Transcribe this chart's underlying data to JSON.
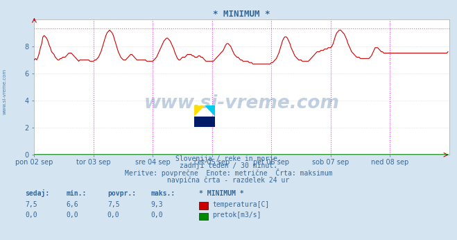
{
  "title": "* MINIMUM *",
  "bg_color": "#d4e4f0",
  "plot_bg_color": "#ffffff",
  "grid_color": "#c8c8c8",
  "line_color_temp": "#cc0000",
  "line_color_flow": "#008800",
  "dashed_line_color": "#ff6666",
  "vline_color": "#ff44ff",
  "arrow_color": "#cc0000",
  "ylim": [
    0,
    10
  ],
  "yticks": [
    0,
    2,
    4,
    6,
    8
  ],
  "xlim": [
    0,
    336
  ],
  "xlabel_ticks": [
    0,
    48,
    96,
    144,
    192,
    240,
    288
  ],
  "xlabel_labels": [
    "pon 02 sep",
    "tor 03 sep",
    "sre 04 sep",
    "čet 05 sep",
    "pet 06 sep",
    "sob 07 sep",
    "ned 08 sep"
  ],
  "vlines": [
    48,
    96,
    144,
    192,
    240,
    288
  ],
  "max_line_y": 9.3,
  "watermark": "www.si-vreme.com",
  "subtitle1": "Slovenija / reke in morje.",
  "subtitle2": "zadnji teden / 30 minut.",
  "subtitle3": "Meritve: povprečne  Enote: metrične  Črta: maksimum",
  "subtitle4": "navpična črta - razdelek 24 ur",
  "text_color": "#336699",
  "table_header": [
    "sedaj:",
    "min.:",
    "povpr.:",
    "maks.:",
    "* MINIMUM *"
  ],
  "table_row1": [
    "7,5",
    "6,6",
    "7,5",
    "9,3",
    "temperatura[C]"
  ],
  "table_row2": [
    "0,0",
    "0,0",
    "0,0",
    "0,0",
    "pretok[m3/s]"
  ],
  "temp_data": [
    7.0,
    7.1,
    7.0,
    7.2,
    7.5,
    7.9,
    8.2,
    8.7,
    8.8,
    8.7,
    8.6,
    8.4,
    8.1,
    7.9,
    7.6,
    7.5,
    7.4,
    7.2,
    7.1,
    7.0,
    7.0,
    7.1,
    7.1,
    7.2,
    7.2,
    7.2,
    7.3,
    7.4,
    7.5,
    7.5,
    7.5,
    7.4,
    7.3,
    7.2,
    7.1,
    7.0,
    6.9,
    7.0,
    7.0,
    7.0,
    7.0,
    7.0,
    7.0,
    7.0,
    7.0,
    6.9,
    6.9,
    6.9,
    6.9,
    7.0,
    7.0,
    7.1,
    7.2,
    7.4,
    7.6,
    7.9,
    8.2,
    8.5,
    8.8,
    9.0,
    9.1,
    9.2,
    9.1,
    9.0,
    8.8,
    8.5,
    8.2,
    7.9,
    7.6,
    7.4,
    7.2,
    7.1,
    7.0,
    7.0,
    7.0,
    7.1,
    7.2,
    7.3,
    7.4,
    7.4,
    7.3,
    7.2,
    7.1,
    7.0,
    7.0,
    7.0,
    7.0,
    7.0,
    7.0,
    7.0,
    7.0,
    6.9,
    6.9,
    6.9,
    6.9,
    6.9,
    6.9,
    7.0,
    7.1,
    7.2,
    7.4,
    7.6,
    7.8,
    8.0,
    8.2,
    8.4,
    8.5,
    8.6,
    8.6,
    8.5,
    8.4,
    8.2,
    8.0,
    7.8,
    7.5,
    7.3,
    7.1,
    7.0,
    7.0,
    7.1,
    7.2,
    7.2,
    7.2,
    7.3,
    7.4,
    7.4,
    7.4,
    7.4,
    7.3,
    7.3,
    7.2,
    7.2,
    7.2,
    7.3,
    7.3,
    7.2,
    7.2,
    7.1,
    7.0,
    6.9,
    6.9,
    6.9,
    6.9,
    6.9,
    6.9,
    6.9,
    7.0,
    7.1,
    7.2,
    7.3,
    7.4,
    7.5,
    7.6,
    7.7,
    7.9,
    8.1,
    8.2,
    8.2,
    8.1,
    8.0,
    7.8,
    7.6,
    7.4,
    7.3,
    7.2,
    7.2,
    7.1,
    7.0,
    7.0,
    6.9,
    6.9,
    6.9,
    6.9,
    6.9,
    6.8,
    6.8,
    6.8,
    6.7,
    6.7,
    6.7,
    6.7,
    6.7,
    6.7,
    6.7,
    6.7,
    6.7,
    6.7,
    6.7,
    6.7,
    6.7,
    6.7,
    6.7,
    6.8,
    6.8,
    6.9,
    7.0,
    7.1,
    7.3,
    7.5,
    7.8,
    8.1,
    8.4,
    8.6,
    8.7,
    8.7,
    8.6,
    8.4,
    8.2,
    7.9,
    7.7,
    7.5,
    7.3,
    7.2,
    7.1,
    7.0,
    7.0,
    7.0,
    6.9,
    6.9,
    6.9,
    6.9,
    6.9,
    6.9,
    7.0,
    7.1,
    7.2,
    7.3,
    7.4,
    7.5,
    7.6,
    7.6,
    7.6,
    7.7,
    7.7,
    7.7,
    7.8,
    7.8,
    7.8,
    7.9,
    7.9,
    7.9,
    8.0,
    8.2,
    8.5,
    8.8,
    9.0,
    9.1,
    9.2,
    9.2,
    9.1,
    9.0,
    8.9,
    8.7,
    8.5,
    8.2,
    8.0,
    7.8,
    7.6,
    7.5,
    7.4,
    7.3,
    7.2,
    7.2,
    7.2,
    7.1,
    7.1,
    7.1,
    7.1,
    7.1,
    7.1,
    7.1,
    7.1,
    7.2,
    7.3,
    7.5,
    7.7,
    7.9,
    7.9,
    7.9,
    7.8,
    7.7,
    7.6,
    7.6,
    7.5,
    7.5,
    7.5,
    7.5,
    7.5,
    7.5,
    7.5,
    7.5,
    7.5,
    7.5,
    7.5,
    7.5,
    7.5,
    7.5,
    7.5,
    7.5,
    7.5,
    7.5,
    7.5,
    7.5,
    7.5,
    7.5,
    7.5,
    7.5,
    7.5,
    7.5,
    7.5,
    7.5,
    7.5,
    7.5,
    7.5,
    7.5,
    7.5,
    7.5,
    7.5,
    7.5,
    7.5,
    7.5,
    7.5,
    7.5,
    7.5,
    7.5,
    7.5,
    7.5,
    7.5,
    7.5,
    7.5,
    7.5,
    7.5,
    7.5,
    7.5,
    7.5,
    7.6
  ]
}
